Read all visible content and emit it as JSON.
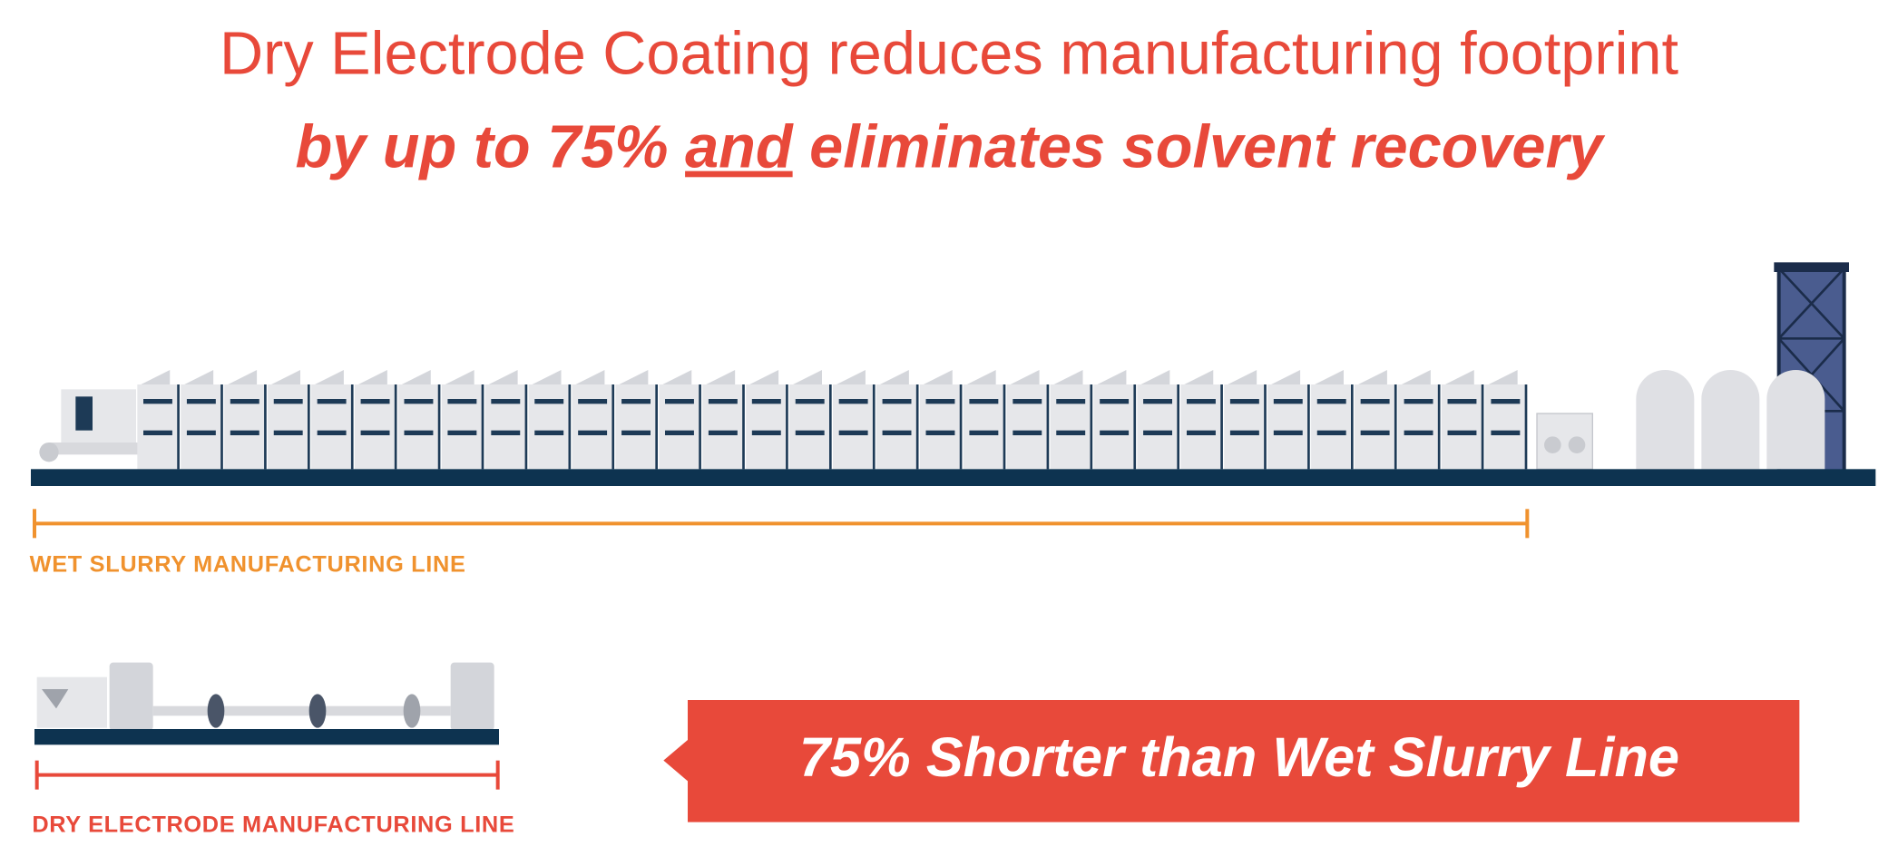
{
  "header": {
    "title": "Dry Electrode Coating reduces manufacturing footprint",
    "subtitle": {
      "before": "by up to 75%",
      "underlined": "and",
      "after": "eliminates solvent recovery"
    }
  },
  "wet_line": {
    "label": "WET SLURRY MANUFACTURING LINE"
  },
  "dry_line": {
    "label": "DRY ELECTRODE MANUFACTURING LINE"
  },
  "banner": {
    "text": "75% Shorter than Wet Slurry Line"
  }
}
